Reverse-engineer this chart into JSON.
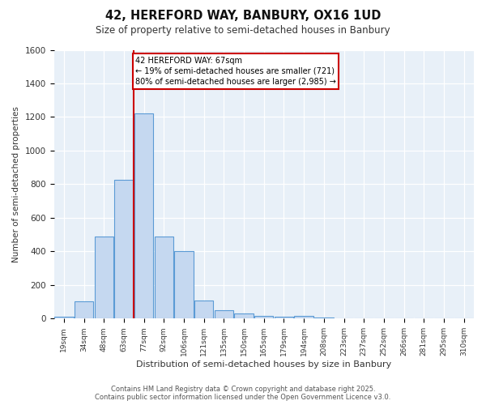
{
  "title1": "42, HEREFORD WAY, BANBURY, OX16 1UD",
  "title2": "Size of property relative to semi-detached houses in Banbury",
  "xlabel": "Distribution of semi-detached houses by size in Banbury",
  "ylabel": "Number of semi-detached properties",
  "categories": [
    "19sqm",
    "34sqm",
    "48sqm",
    "63sqm",
    "77sqm",
    "92sqm",
    "106sqm",
    "121sqm",
    "135sqm",
    "150sqm",
    "165sqm",
    "179sqm",
    "194sqm",
    "208sqm",
    "223sqm",
    "237sqm",
    "252sqm",
    "266sqm",
    "281sqm",
    "295sqm",
    "310sqm"
  ],
  "values": [
    10,
    105,
    490,
    825,
    1220,
    490,
    400,
    110,
    50,
    30,
    15,
    10,
    15,
    5,
    0,
    0,
    0,
    0,
    0,
    0,
    0
  ],
  "bar_color": "#c5d8f0",
  "bar_edge_color": "#5b9bd5",
  "property_sqm": 67,
  "annotation_text": "42 HEREFORD WAY: 67sqm\n← 19% of semi-detached houses are smaller (721)\n80% of semi-detached houses are larger (2,985) →",
  "vline_color": "#cc0000",
  "annotation_box_edge": "#cc0000",
  "ylim": [
    0,
    1600
  ],
  "yticks": [
    0,
    200,
    400,
    600,
    800,
    1000,
    1200,
    1400,
    1600
  ],
  "footer1": "Contains HM Land Registry data © Crown copyright and database right 2025.",
  "footer2": "Contains public sector information licensed under the Open Government Licence v3.0.",
  "bg_color": "#ffffff",
  "plot_bg_color": "#e8f0f8"
}
